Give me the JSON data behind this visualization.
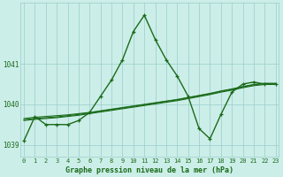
{
  "title": "Graphe pression niveau de la mer (hPa)",
  "background_color": "#cceee8",
  "grid_color": "#99cccc",
  "line_color": "#1a6b1a",
  "x_labels": [
    "0",
    "1",
    "2",
    "3",
    "4",
    "5",
    "6",
    "7",
    "8",
    "9",
    "10",
    "11",
    "12",
    "13",
    "14",
    "15",
    "16",
    "17",
    "18",
    "19",
    "20",
    "21",
    "22",
    "23"
  ],
  "ylim": [
    1038.7,
    1042.5
  ],
  "yticks": [
    1039,
    1040,
    1041
  ],
  "main_series": [
    1039.1,
    1039.7,
    1039.5,
    1039.5,
    1039.5,
    1039.6,
    1039.8,
    1040.2,
    1040.6,
    1041.1,
    1041.8,
    1042.2,
    1041.6,
    1041.1,
    1040.7,
    1040.2,
    1039.4,
    1039.15,
    1039.75,
    1040.3,
    1040.5,
    1040.55,
    1040.5,
    1040.5
  ],
  "trend1": [
    1039.65,
    1039.68,
    1039.7,
    1039.72,
    1039.74,
    1039.77,
    1039.8,
    1039.84,
    1039.88,
    1039.92,
    1039.96,
    1040.0,
    1040.04,
    1040.08,
    1040.12,
    1040.17,
    1040.22,
    1040.27,
    1040.33,
    1040.38,
    1040.44,
    1040.49,
    1040.52,
    1040.52
  ],
  "trend2": [
    1039.62,
    1039.65,
    1039.67,
    1039.69,
    1039.72,
    1039.75,
    1039.79,
    1039.83,
    1039.87,
    1039.91,
    1039.95,
    1039.99,
    1040.03,
    1040.07,
    1040.11,
    1040.16,
    1040.21,
    1040.26,
    1040.32,
    1040.37,
    1040.43,
    1040.48,
    1040.51,
    1040.51
  ],
  "trend3": [
    1039.6,
    1039.63,
    1039.65,
    1039.67,
    1039.7,
    1039.73,
    1039.77,
    1039.81,
    1039.85,
    1039.89,
    1039.93,
    1039.97,
    1040.01,
    1040.05,
    1040.09,
    1040.14,
    1040.19,
    1040.24,
    1040.3,
    1040.35,
    1040.41,
    1040.46,
    1040.49,
    1040.49
  ]
}
